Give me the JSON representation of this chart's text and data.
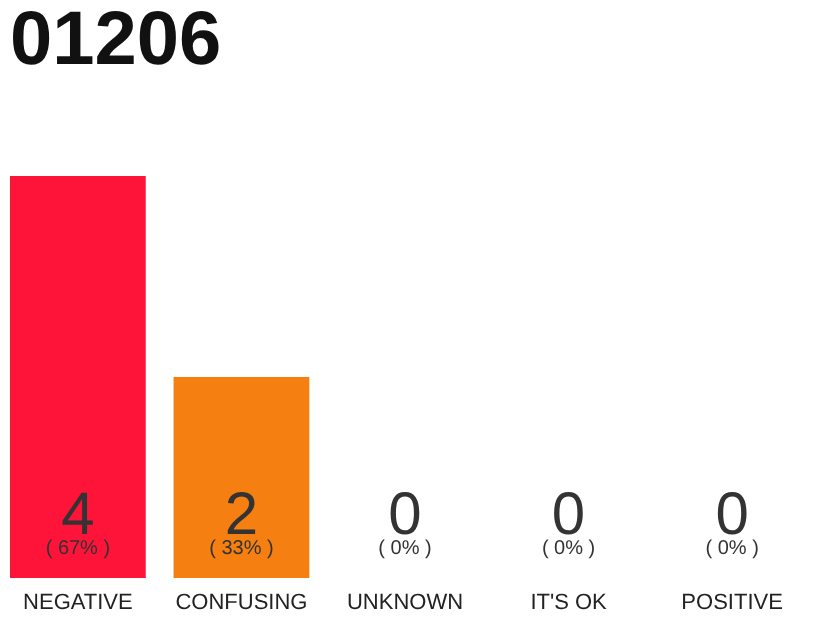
{
  "chart_data": {
    "type": "bar",
    "title": "01206",
    "categories": [
      "NEGATIVE",
      "CONFUSING",
      "UNKNOWN",
      "IT'S OK",
      "POSITIVE"
    ],
    "values": [
      4,
      2,
      0,
      0,
      0
    ],
    "colors": [
      "#ff1439",
      "#f57f10",
      "#f57f10",
      "#f57f10",
      "#f57f10"
    ],
    "data_labels": true,
    "annotations": [
      {
        "text": "( 67% )",
        "x": "NEGATIVE",
        "y": 0
      },
      {
        "text": "( 33% )",
        "x": "CONFUSING",
        "y": 0
      },
      {
        "text": "( 0% )",
        "x": "UNKNOWN",
        "y": 0
      },
      {
        "text": "( 0% )",
        "x": "IT'S OK",
        "y": 0
      },
      {
        "text": "( 0% )",
        "x": "POSITIVE",
        "y": 0
      }
    ]
  }
}
